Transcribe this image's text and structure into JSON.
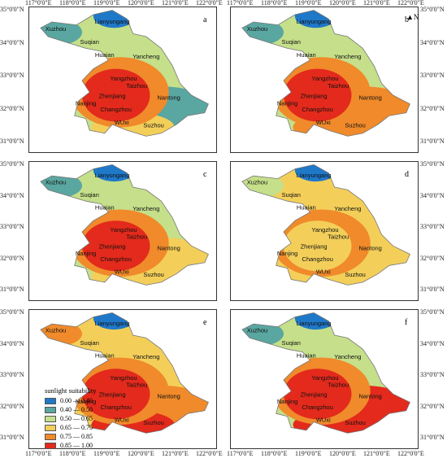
{
  "lat_labels": [
    "35°0'0\"N",
    "34°0'0\"N",
    "33°0'0\"N",
    "32°0'0\"N",
    "31°0'0\"N"
  ],
  "lon_labels": [
    "117°0'0\"E",
    "118°0'0\"E",
    "119°0'0\"E",
    "120°0'0\"E",
    "121°0'0\"E",
    "122°0'0\"E"
  ],
  "north_label": "N",
  "legend": {
    "title": "sunlight suitability",
    "items": [
      {
        "label": "0.00 — 0.40",
        "color": "#1f78c8"
      },
      {
        "label": "0.40 — 0.50",
        "color": "#5aa6a0"
      },
      {
        "label": "0.50 — 0.65",
        "color": "#c5df8a"
      },
      {
        "label": "0.65 — 0.75",
        "color": "#f3cf5a"
      },
      {
        "label": "0.75 — 0.85",
        "color": "#f08a2a"
      },
      {
        "label": "0.85 — 1.00",
        "color": "#e32a1c"
      }
    ]
  },
  "cities": [
    "Xuzhou",
    "Lianyungang",
    "Suqian",
    "Huaian",
    "Yancheng",
    "Yangzhou",
    "Taizhou",
    "Zhenjiang",
    "Nanjing",
    "Changzhou",
    "Nantong",
    "WUxi",
    "Suzhou"
  ],
  "panels": [
    {
      "id": "a",
      "label": "a",
      "colors": {
        "north": "#1f78c8",
        "nw": "#5aa6a0",
        "mid": "#c5df8a",
        "center": "#e32a1c",
        "south": "#f3cf5a",
        "east": "#5aa6a0",
        "ring": "#f08a2a"
      }
    },
    {
      "id": "b",
      "label": "b",
      "colors": {
        "north": "#1f78c8",
        "nw": "#5aa6a0",
        "mid": "#c5df8a",
        "center": "#e32a1c",
        "south": "#f08a2a",
        "east": "#f08a2a",
        "ring": "#f08a2a"
      }
    },
    {
      "id": "c",
      "label": "c",
      "colors": {
        "north": "#1f78c8",
        "nw": "#5aa6a0",
        "mid": "#c5df8a",
        "center": "#e32a1c",
        "south": "#f3cf5a",
        "east": "#f3cf5a",
        "ring": "#f08a2a"
      }
    },
    {
      "id": "d",
      "label": "d",
      "colors": {
        "north": "#1f78c8",
        "nw": "#c5df8a",
        "mid": "#f3cf5a",
        "center": "#f3cf5a",
        "south": "#f3cf5a",
        "east": "#f3cf5a",
        "ring": "#f08a2a"
      }
    },
    {
      "id": "e",
      "label": "e",
      "colors": {
        "north": "#1f78c8",
        "nw": "#f08a2a",
        "mid": "#f3cf5a",
        "center": "#e32a1c",
        "south": "#e32a1c",
        "east": "#f08a2a",
        "ring": "#f08a2a"
      }
    },
    {
      "id": "f",
      "label": "f",
      "colors": {
        "north": "#1f78c8",
        "nw": "#5aa6a0",
        "mid": "#c5df8a",
        "center": "#e32a1c",
        "south": "#e32a1c",
        "east": "#e32a1c",
        "ring": "#f08a2a"
      }
    }
  ]
}
